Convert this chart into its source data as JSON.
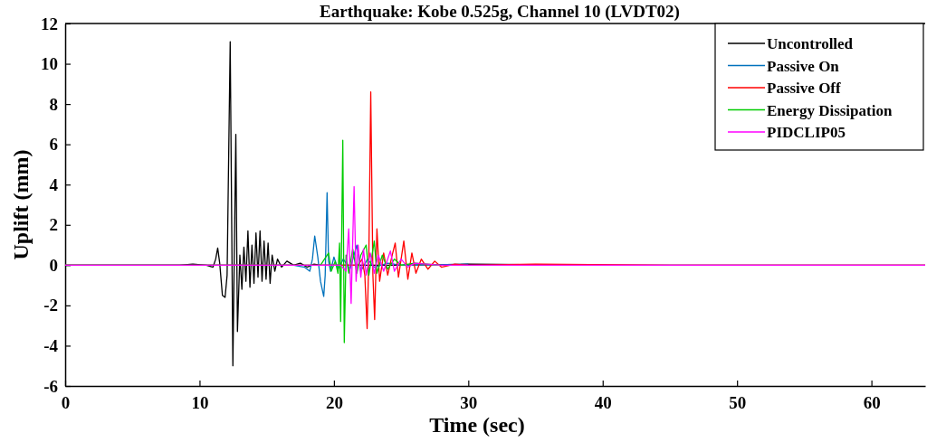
{
  "chart_data": {
    "type": "line",
    "title": "Earthquake: Kobe 0.525g, Channel 10 (LVDT02)",
    "xlabel": "Time (sec)",
    "ylabel": "Uplift (mm)",
    "xlim": [
      0,
      64
    ],
    "xticks": [
      0,
      10,
      20,
      30,
      40,
      50,
      60
    ],
    "ylim": [
      -6,
      12
    ],
    "yticks": [
      -6,
      -4,
      -2,
      0,
      2,
      4,
      6,
      8,
      10,
      12
    ],
    "grid": false,
    "legend": "top right",
    "marker": "none",
    "line_style": "solid",
    "series": [
      {
        "name": "Uncontrolled",
        "color": "#000000",
        "x": [
          0,
          8.5,
          9.5,
          10.5,
          11,
          11.2,
          11.35,
          11.5,
          11.7,
          11.9,
          12.05,
          12.28,
          12.48,
          12.7,
          12.82,
          13.0,
          13.15,
          13.3,
          13.45,
          13.6,
          13.75,
          13.9,
          14.05,
          14.2,
          14.35,
          14.5,
          14.65,
          14.8,
          14.95,
          15.1,
          15.25,
          15.4,
          15.6,
          15.8,
          16.1,
          16.5,
          17,
          17.5,
          18,
          18.5,
          19,
          25,
          30,
          40,
          64
        ],
        "values": [
          0,
          0,
          0.05,
          0,
          -0.1,
          0.3,
          0.85,
          0.1,
          -1.5,
          -1.6,
          -0.5,
          11.1,
          -5.0,
          6.5,
          -3.3,
          0.5,
          -1.2,
          0.9,
          -0.8,
          1.7,
          -1.1,
          1.0,
          -0.9,
          1.6,
          -0.6,
          1.7,
          -0.8,
          1.2,
          -0.7,
          1.1,
          -0.9,
          0.5,
          -0.3,
          0.3,
          -0.1,
          0.2,
          0,
          0.1,
          -0.1,
          0.05,
          0,
          0,
          0.05,
          0,
          0
        ]
      },
      {
        "name": "Passive On",
        "color": "#0072bd",
        "x": [
          0,
          17,
          17.8,
          18.2,
          18.4,
          18.57,
          18.8,
          19.0,
          19.24,
          19.35,
          19.49,
          19.6,
          19.75,
          20.0,
          20.3,
          20.7,
          21.2,
          21.7,
          22.0,
          22.5,
          23,
          24,
          25,
          30
        ],
        "values": [
          0,
          0,
          -0.1,
          -0.3,
          0.3,
          1.45,
          0.4,
          -0.8,
          -1.55,
          -0.5,
          3.6,
          0.2,
          -0.3,
          0.4,
          -0.2,
          0.3,
          -0.2,
          1.0,
          -0.3,
          0.3,
          -0.1,
          0.1,
          0,
          0.05
        ]
      },
      {
        "name": "Passive Off",
        "color": "#ff0000",
        "x": [
          0,
          21.8,
          22.1,
          22.3,
          22.47,
          22.6,
          22.74,
          22.9,
          23.03,
          23.2,
          23.4,
          23.7,
          24.0,
          24.3,
          24.56,
          24.8,
          25.2,
          25.5,
          25.8,
          26.1,
          26.5,
          27,
          27.5,
          28,
          29,
          30,
          35,
          45,
          64
        ],
        "values": [
          0,
          0,
          0.3,
          -0.5,
          -3.15,
          0.5,
          8.6,
          -0.5,
          -2.7,
          1.8,
          -0.8,
          0.6,
          -0.5,
          0.4,
          1.1,
          -0.6,
          1.2,
          -0.7,
          0.6,
          -0.4,
          0.3,
          -0.2,
          0.2,
          -0.1,
          0.05,
          0,
          0.05,
          0,
          0
        ]
      },
      {
        "name": "Energy Dissipation",
        "color": "#00cc00",
        "x": [
          0,
          19,
          19.6,
          19.8,
          20.1,
          20.3,
          20.42,
          20.5,
          20.66,
          20.77,
          20.9,
          21.1,
          21.4,
          21.7,
          22.0,
          22.4,
          22.6,
          23.0,
          23.2,
          23.6,
          24,
          24.5,
          25,
          26,
          28
        ],
        "values": [
          0,
          0,
          0.6,
          -0.3,
          0.2,
          -0.4,
          1.1,
          -2.8,
          6.2,
          -3.85,
          0.5,
          -0.4,
          0.8,
          -0.4,
          0.5,
          1.0,
          -0.5,
          1.2,
          -0.4,
          0.5,
          -0.2,
          0.3,
          0,
          0.1,
          0
        ]
      },
      {
        "name": "PIDCLIP05",
        "color": "#ff00ff",
        "x": [
          0,
          20.5,
          20.9,
          21.1,
          21.28,
          21.5,
          21.65,
          21.8,
          22.0,
          22.2,
          22.4,
          22.7,
          23.0,
          23.3,
          23.7,
          24.2,
          24.5,
          25,
          25.5,
          26,
          28,
          64
        ],
        "values": [
          0,
          0,
          -0.3,
          1.8,
          -1.9,
          3.9,
          -0.8,
          1.0,
          -0.6,
          0.8,
          -0.5,
          0.6,
          -0.4,
          0.5,
          -0.3,
          0.7,
          -0.3,
          0.3,
          -0.1,
          0.1,
          0,
          0
        ]
      }
    ]
  }
}
